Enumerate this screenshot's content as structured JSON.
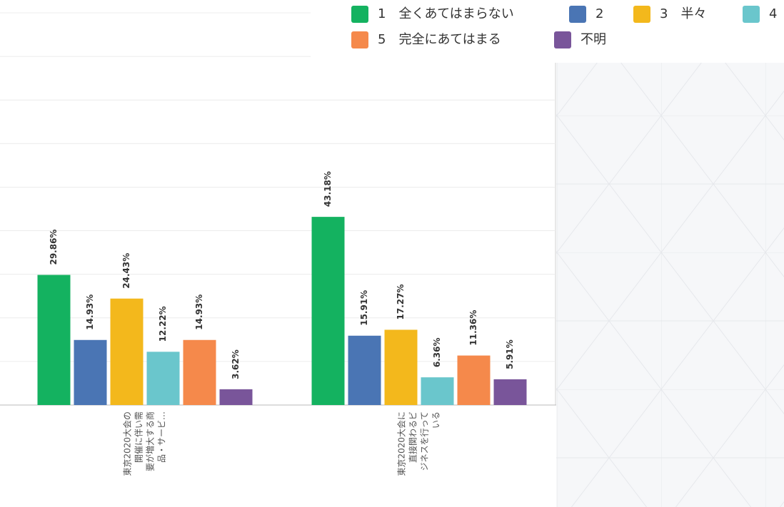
{
  "chart_data": {
    "type": "bar",
    "categories": [
      [
        "東京2020大会の",
        "開催に伴い需",
        "要が増大する商",
        "品・サービ…"
      ],
      [
        "東京2020大会に",
        "直接関わるビ",
        "ジネスを行って",
        "いる"
      ]
    ],
    "series": [
      {
        "name": "1　全くあてはまらない",
        "color": "#14b260",
        "values": [
          29.86,
          43.18
        ],
        "value_labels": [
          "29.86%",
          "43.18%"
        ]
      },
      {
        "name": "2",
        "color": "#4a75b4",
        "values": [
          14.93,
          15.91
        ],
        "value_labels": [
          "14.93%",
          "15.91%"
        ]
      },
      {
        "name": "3　半々",
        "color": "#f3b81c",
        "values": [
          24.43,
          17.27
        ],
        "value_labels": [
          "24.43%",
          "17.27%"
        ]
      },
      {
        "name": "4",
        "color": "#6ac6cc",
        "values": [
          12.22,
          6.36
        ],
        "value_labels": [
          "12.22%",
          "6.36%"
        ]
      },
      {
        "name": "5　完全にあてはまる",
        "color": "#f5894b",
        "values": [
          14.93,
          11.36
        ],
        "value_labels": [
          "14.93%",
          "11.36%"
        ]
      },
      {
        "name": "不明",
        "color": "#79559a",
        "values": [
          3.62,
          5.91
        ],
        "value_labels": [
          "3.62%",
          "5.91%"
        ]
      }
    ],
    "ylim": [
      0,
      90
    ],
    "yticks": [
      0,
      10,
      20,
      30,
      40,
      50,
      60,
      70,
      80,
      90
    ],
    "grid": true,
    "legend": "top-right"
  }
}
